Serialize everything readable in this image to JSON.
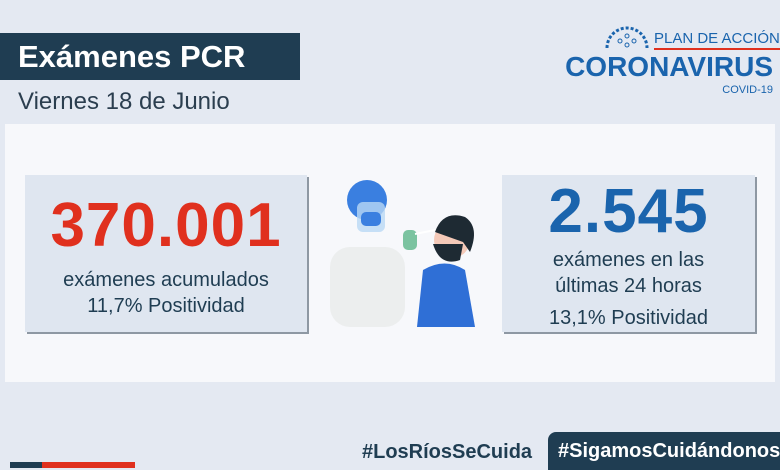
{
  "header": {
    "title": "Exámenes PCR",
    "date": "Viernes 18 de Junio"
  },
  "logo": {
    "plan": "PLAN DE ACCIÓN",
    "brand": "CORONAVIRUS",
    "sub": "COVID-19"
  },
  "left_card": {
    "value": "370.001",
    "line1": "exámenes  acumulados",
    "line2": "11,7% Positividad",
    "color": "#e0301e"
  },
  "right_card": {
    "value": "2.545",
    "line1": "exámenes en las",
    "line2": "últimas 24 horas",
    "line3": "13,1% Positividad",
    "color": "#1a64ad"
  },
  "footer": {
    "tag1": "#LosRíosSeCuida",
    "tag2": "#SigamosCuidándonos"
  }
}
